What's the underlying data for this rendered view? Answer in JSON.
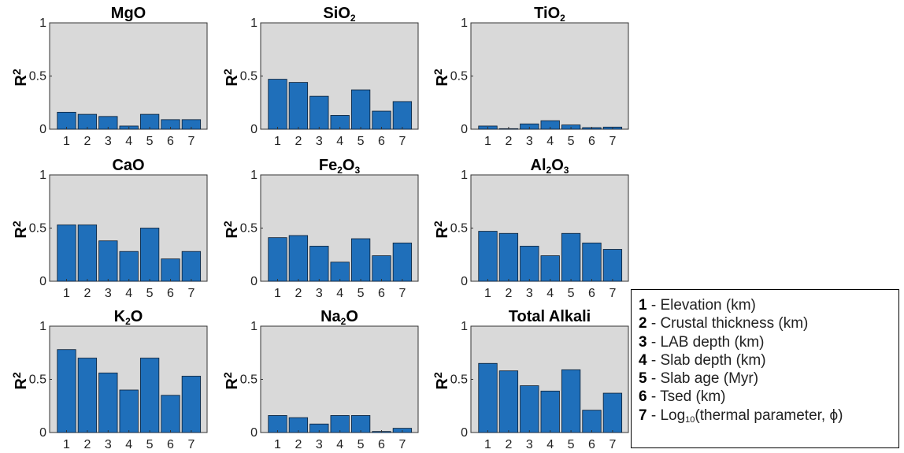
{
  "chart_data": [
    {
      "type": "bar",
      "title": "MgO",
      "ylabel": "R2",
      "ylim": [
        0,
        1
      ],
      "yticks": [
        "0",
        "0.5",
        "1"
      ],
      "categories": [
        "1",
        "2",
        "3",
        "4",
        "5",
        "6",
        "7"
      ],
      "values": [
        0.16,
        0.14,
        0.12,
        0.03,
        0.14,
        0.09,
        0.09
      ]
    },
    {
      "type": "bar",
      "title": "SiO2",
      "ylabel": "R2",
      "ylim": [
        0,
        1
      ],
      "yticks": [
        "0",
        "0.5",
        "1"
      ],
      "categories": [
        "1",
        "2",
        "3",
        "4",
        "5",
        "6",
        "7"
      ],
      "values": [
        0.47,
        0.44,
        0.31,
        0.13,
        0.37,
        0.17,
        0.26
      ]
    },
    {
      "type": "bar",
      "title": "TiO2",
      "ylabel": "R2",
      "ylim": [
        0,
        1
      ],
      "yticks": [
        "0",
        "0.5",
        "1"
      ],
      "categories": [
        "1",
        "2",
        "3",
        "4",
        "5",
        "6",
        "7"
      ],
      "values": [
        0.03,
        0.005,
        0.05,
        0.08,
        0.04,
        0.015,
        0.02
      ]
    },
    {
      "type": "bar",
      "title": "CaO",
      "ylabel": "R2",
      "ylim": [
        0,
        1
      ],
      "yticks": [
        "0",
        "0.5",
        "1"
      ],
      "categories": [
        "1",
        "2",
        "3",
        "4",
        "5",
        "6",
        "7"
      ],
      "values": [
        0.53,
        0.53,
        0.38,
        0.28,
        0.5,
        0.21,
        0.28
      ]
    },
    {
      "type": "bar",
      "title": "Fe2O3",
      "ylabel": "R2",
      "ylim": [
        0,
        1
      ],
      "yticks": [
        "0",
        "0.5",
        "1"
      ],
      "categories": [
        "1",
        "2",
        "3",
        "4",
        "5",
        "6",
        "7"
      ],
      "values": [
        0.41,
        0.43,
        0.33,
        0.18,
        0.4,
        0.24,
        0.36
      ]
    },
    {
      "type": "bar",
      "title": "Al2O3",
      "ylabel": "R2",
      "ylim": [
        0,
        1
      ],
      "yticks": [
        "0",
        "0.5",
        "1"
      ],
      "categories": [
        "1",
        "2",
        "3",
        "4",
        "5",
        "6",
        "7"
      ],
      "values": [
        0.47,
        0.45,
        0.33,
        0.24,
        0.45,
        0.36,
        0.3
      ]
    },
    {
      "type": "bar",
      "title": "K2O",
      "ylabel": "R2",
      "ylim": [
        0,
        1
      ],
      "yticks": [
        "0",
        "0.5",
        "1"
      ],
      "categories": [
        "1",
        "2",
        "3",
        "4",
        "5",
        "6",
        "7"
      ],
      "values": [
        0.78,
        0.7,
        0.56,
        0.4,
        0.7,
        0.35,
        0.53
      ]
    },
    {
      "type": "bar",
      "title": "Na2O",
      "ylabel": "R2",
      "ylim": [
        0,
        1
      ],
      "yticks": [
        "0",
        "0.5",
        "1"
      ],
      "categories": [
        "1",
        "2",
        "3",
        "4",
        "5",
        "6",
        "7"
      ],
      "values": [
        0.16,
        0.14,
        0.08,
        0.16,
        0.16,
        0.01,
        0.04
      ]
    },
    {
      "type": "bar",
      "title": "Total Alkali",
      "ylabel": "R2",
      "ylim": [
        0,
        1
      ],
      "yticks": [
        "0",
        "0.5",
        "1"
      ],
      "categories": [
        "1",
        "2",
        "3",
        "4",
        "5",
        "6",
        "7"
      ],
      "values": [
        0.65,
        0.58,
        0.44,
        0.39,
        0.59,
        0.21,
        0.37
      ]
    }
  ],
  "colors": {
    "bar": "#1f6fba",
    "bar_edge": "#0d1f33",
    "axes_bg": "#d9d9d9"
  },
  "legend": [
    {
      "num": "1",
      "text": " - Elevation (km)"
    },
    {
      "num": "2",
      "text": " - Crustal thickness (km)"
    },
    {
      "num": "3",
      "text": " - LAB depth (km)"
    },
    {
      "num": "4",
      "text": " - Slab depth (km)"
    },
    {
      "num": "5",
      "text": " - Slab age (Myr)"
    },
    {
      "num": "6",
      "text": " - Tsed (km)"
    },
    {
      "num": "7",
      "text": " - Log",
      "sub": "10",
      "post": "(thermal parameter, ϕ)"
    }
  ]
}
